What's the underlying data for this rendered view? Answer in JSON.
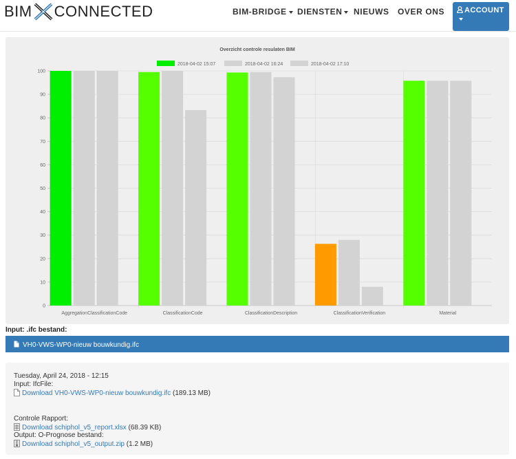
{
  "nav": {
    "logo_left": "BIM",
    "logo_right": "CONNECTED",
    "items": [
      {
        "label": "BIM-BRIDGE",
        "dropdown": true
      },
      {
        "label": "DIENSTEN",
        "dropdown": true
      },
      {
        "label": "NIEUWS",
        "dropdown": false
      },
      {
        "label": "OVER ONS",
        "dropdown": false
      }
    ],
    "account_label": "ACCOUNT"
  },
  "colors": {
    "brand_blue": "#337ab7",
    "pass_green": "#55ff00",
    "bright_green": "#00ee00",
    "warn_orange": "#ff9a00",
    "history_grey": "#d3d3d3"
  },
  "chart_data": {
    "type": "bar",
    "title": "Overzicht controle resulaten BIM",
    "categories": [
      "AggregationClassificationCode",
      "ClassificationCode",
      "ClassificationDescription",
      "ClassificationVerification",
      "Material"
    ],
    "series": [
      {
        "name": "2018-04-02 15:07",
        "values": [
          100,
          99.5,
          99.3,
          26.3,
          95.8
        ],
        "colors": [
          "#00ee00",
          "#55ff00",
          "#55ff00",
          "#ff9a00",
          "#55ff00"
        ]
      },
      {
        "name": "2018-04-02 16:24",
        "values": [
          100,
          100,
          99.5,
          28,
          95.8
        ]
      },
      {
        "name": "2018-04-02 17:10",
        "values": [
          100,
          83.3,
          97.3,
          8,
          95.8
        ]
      }
    ],
    "ylim": [
      0,
      100
    ],
    "yticks": [
      0,
      10,
      20,
      30,
      40,
      50,
      60,
      70,
      80,
      90,
      100
    ],
    "legend": "top",
    "grid": true
  },
  "input": {
    "label": "Input: .ifc bestand:",
    "file_name": "VH0-VWS-WP0-nieuw bouwkundig.ifc"
  },
  "info": {
    "date": "Tuesday, April 24, 2018 - 12:15",
    "ifc_label": "Input: IfcFile:",
    "ifc_link": "Download VH0-VWS-WP0-nieuw bouwkundig.ifc",
    "ifc_size": "(189.13 MB)",
    "report_label": "Controle Rapport:",
    "report_link": "Download schiphol_v5_report.xlsx",
    "report_size": "(68.39 KB)",
    "output_label": "Output: O-Prognose bestand:",
    "output_link": "Download schiphol_v5_output.zip",
    "output_size": "(1.2 MB)"
  }
}
